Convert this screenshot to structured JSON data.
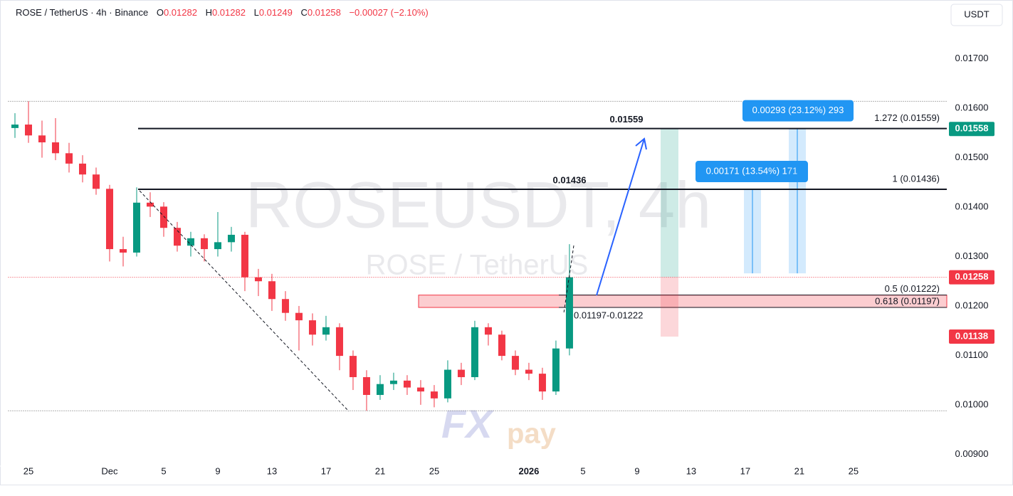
{
  "header": {
    "symbol": "ROSE / TetherUS · 4h · Binance",
    "open_label": "O",
    "open": "0.01282",
    "high_label": "H",
    "high": "0.01282",
    "low_label": "L",
    "low": "0.01249",
    "close_label": "C",
    "close": "0.01258",
    "change": "−0.00027 (−2.10%)"
  },
  "currency_button": "USDT",
  "watermark": {
    "title": "ROSEUSDT, 4h",
    "subtitle": "ROSE / TetherUS"
  },
  "logo": {
    "fx": "FX",
    "pay": "pay"
  },
  "chart_data": {
    "type": "candlestick",
    "x": [
      -1,
      0,
      1,
      2,
      3,
      4,
      5,
      6,
      7,
      8,
      9,
      10,
      11,
      12,
      13,
      14,
      15,
      16,
      17,
      18,
      19,
      20,
      21,
      22,
      23,
      24,
      25,
      26,
      27,
      28,
      29,
      30,
      31,
      32,
      33,
      34,
      35,
      36,
      37,
      38,
      39,
      40
    ],
    "open": [
      0.0156,
      0.01567,
      0.01545,
      0.01531,
      0.01509,
      0.01488,
      0.01466,
      0.01437,
      0.01315,
      0.01308,
      0.01409,
      0.01401,
      0.01358,
      0.01322,
      0.01337,
      0.01315,
      0.01329,
      0.01344,
      0.01258,
      0.0125,
      0.01214,
      0.01186,
      0.01171,
      0.01142,
      0.01157,
      0.01099,
      0.01056,
      0.0102,
      0.01042,
      0.01049,
      0.01035,
      0.01027,
      0.01013,
      0.01071,
      0.01056,
      0.01157,
      0.01142,
      0.01099,
      0.01071,
      0.01063,
      0.01027,
      0.01114
    ],
    "high": [
      0.0159,
      0.01614,
      0.01575,
      0.0158,
      0.0153,
      0.01505,
      0.0148,
      0.01445,
      0.0134,
      0.0144,
      0.0143,
      0.0141,
      0.0137,
      0.0135,
      0.01345,
      0.0139,
      0.0136,
      0.0135,
      0.01275,
      0.01265,
      0.0123,
      0.012,
      0.01185,
      0.0118,
      0.01165,
      0.0111,
      0.0107,
      0.0106,
      0.01065,
      0.0106,
      0.0105,
      0.0104,
      0.0109,
      0.01085,
      0.0117,
      0.01165,
      0.0115,
      0.0111,
      0.01085,
      0.01075,
      0.0113,
      0.01325
    ],
    "low": [
      0.0154,
      0.0153,
      0.015,
      0.01495,
      0.0147,
      0.0145,
      0.01425,
      0.0129,
      0.0128,
      0.013,
      0.0138,
      0.0134,
      0.0131,
      0.013,
      0.0129,
      0.013,
      0.0131,
      0.0123,
      0.0122,
      0.0119,
      0.0117,
      0.0111,
      0.0112,
      0.0113,
      0.0107,
      0.0103,
      0.00988,
      0.0101,
      0.0103,
      0.0102,
      0.01,
      0.00995,
      0.01005,
      0.0104,
      0.0105,
      0.0112,
      0.0109,
      0.0106,
      0.0105,
      0.0101,
      0.0102,
      0.011
    ],
    "close": [
      0.01567,
      0.01545,
      0.01531,
      0.01509,
      0.01488,
      0.01466,
      0.01437,
      0.01315,
      0.01308,
      0.01409,
      0.01401,
      0.01358,
      0.01322,
      0.01337,
      0.01315,
      0.01329,
      0.01344,
      0.01258,
      0.0125,
      0.01214,
      0.01186,
      0.01171,
      0.01142,
      0.01157,
      0.01099,
      0.01056,
      0.0102,
      0.01042,
      0.01049,
      0.01035,
      0.01027,
      0.01013,
      0.01071,
      0.01056,
      0.01157,
      0.01142,
      0.01099,
      0.01071,
      0.01063,
      0.01027,
      0.01114,
      0.01258
    ],
    "up_color": "#089981",
    "down_color": "#f23645",
    "xlim": [
      -1.5,
      67.9
    ],
    "xticks": [
      {
        "value": 0,
        "label": "25"
      },
      {
        "value": 6,
        "label": "Dec"
      },
      {
        "value": 10,
        "label": "5"
      },
      {
        "value": 14,
        "label": "9"
      },
      {
        "value": 18,
        "label": "13"
      },
      {
        "value": 22,
        "label": "17"
      },
      {
        "value": 26,
        "label": "21"
      },
      {
        "value": 30,
        "label": "25"
      },
      {
        "value": 37,
        "label": "2026",
        "bold": true
      },
      {
        "value": 41,
        "label": "5"
      },
      {
        "value": 45,
        "label": "9"
      },
      {
        "value": 49,
        "label": "13"
      },
      {
        "value": 53,
        "label": "17"
      },
      {
        "value": 57,
        "label": "21"
      },
      {
        "value": 61,
        "label": "25"
      }
    ],
    "ylim": [
      0.00876,
      0.01819
    ],
    "yticks": [
      {
        "value": 0.009,
        "label": "0.00900"
      },
      {
        "value": 0.01,
        "label": "0.01000"
      },
      {
        "value": 0.011,
        "label": "0.01100"
      },
      {
        "value": 0.012,
        "label": "0.01200"
      },
      {
        "value": 0.013,
        "label": "0.01300"
      },
      {
        "value": 0.014,
        "label": "0.01400"
      },
      {
        "value": 0.015,
        "label": "0.01500"
      },
      {
        "value": 0.016,
        "label": "0.01600"
      },
      {
        "value": 0.017,
        "label": "0.01700"
      }
    ],
    "levels": [
      {
        "price": 0.01559,
        "fib": "1.272 (0.01559)"
      },
      {
        "price": 0.01436,
        "fib": "1 (0.01436)"
      }
    ],
    "fib_small": [
      {
        "price": 0.01222,
        "fib": "0.5 (0.01222)"
      },
      {
        "price": 0.01197,
        "fib": "0.618 (0.01197)"
      }
    ],
    "zone": {
      "low": 0.01197,
      "high": 0.01222,
      "label": "0.01197-0.01222"
    },
    "position": {
      "entry": 0.01258,
      "target": 0.01558,
      "stop": 0.01138
    },
    "measures": [
      {
        "from": 0.01266,
        "to": 0.01436,
        "label": "0.00171 (13.54%) 171"
      },
      {
        "from": 0.01266,
        "to": 0.01559,
        "label": "0.00293 (23.12%) 293"
      }
    ],
    "current_price": 0.01258
  }
}
